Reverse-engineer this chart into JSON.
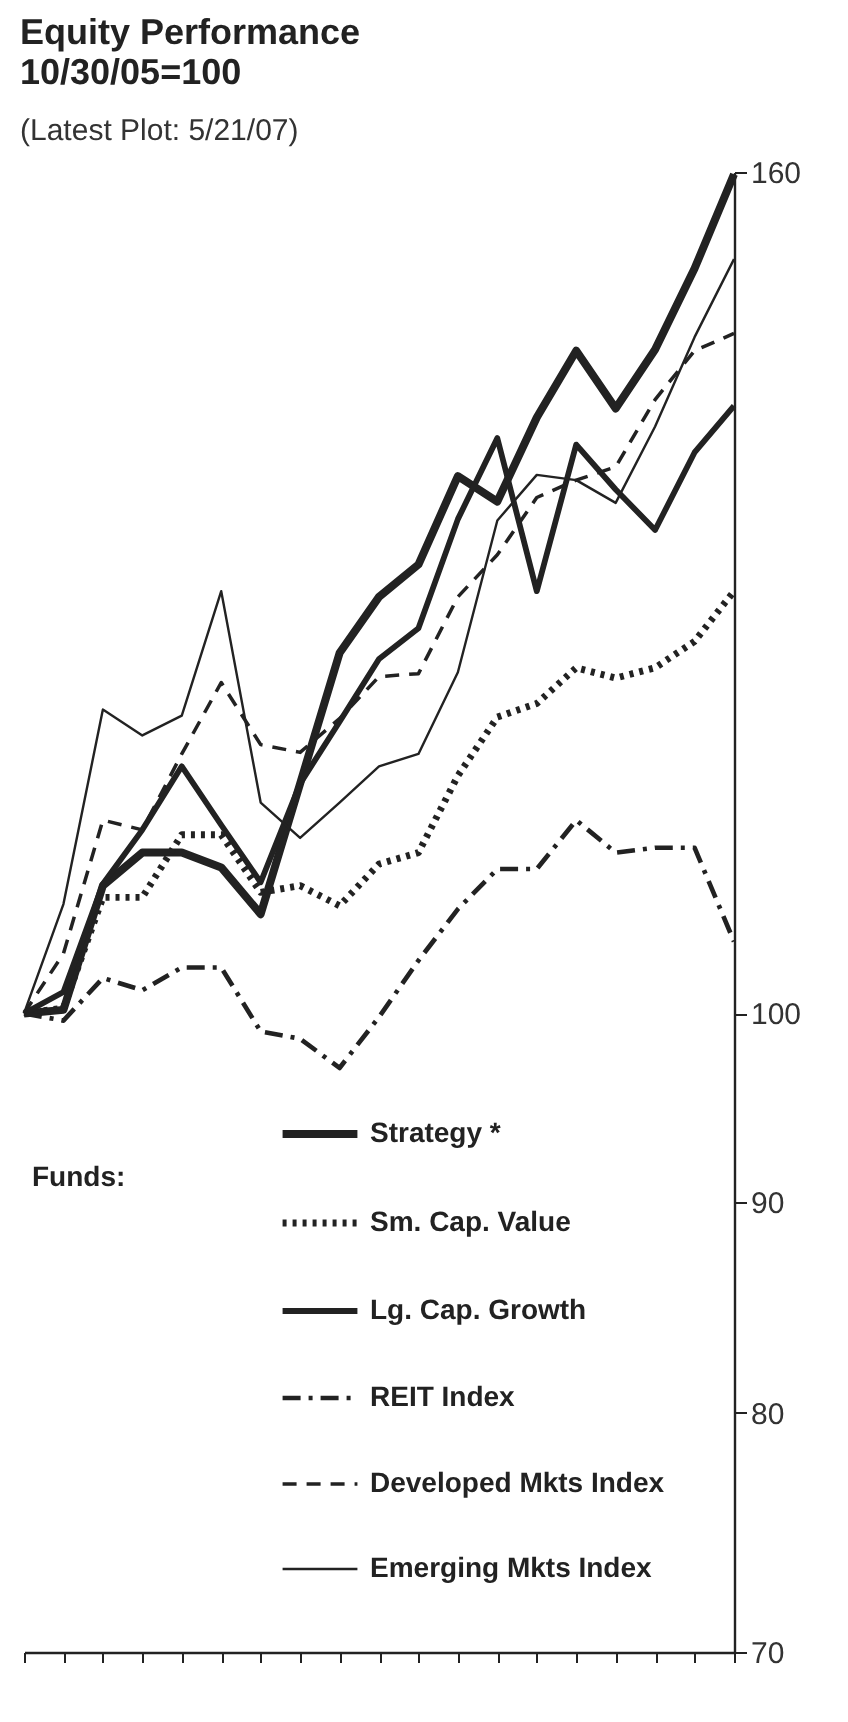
{
  "chart_data": {
    "type": "line",
    "title": [
      "Equity Performance",
      "10/30/05=100"
    ],
    "subtitle": "(Latest Plot: 5/21/07)",
    "categories": [
      null,
      null,
      null,
      null,
      null,
      null,
      null,
      null,
      null,
      null,
      null,
      null,
      null,
      null,
      null,
      null,
      null,
      null,
      null
    ],
    "series": [
      {
        "name": "Strategy *",
        "color": "#222222",
        "line_style": "solid",
        "values": [
          100,
          100.2,
          107.4,
          109.4,
          109.4,
          108.5,
          105.7,
          113.7,
          122.3,
          126.2,
          128.5,
          135.0,
          133.1,
          139.5,
          144.8,
          140.2,
          144.9,
          151.6,
          159.8
        ]
      },
      {
        "name": "Sm. Cap. Value",
        "color": "#222222",
        "line_style": "dotted",
        "values": [
          100,
          100.3,
          106.7,
          106.7,
          110.5,
          110.5,
          107.0,
          107.4,
          106.2,
          108.7,
          109.4,
          114.2,
          118.0,
          118.9,
          121.3,
          120.6,
          121.3,
          123.1,
          126.6
        ]
      },
      {
        "name": "Lg. Cap. Growth",
        "color": "#222222",
        "line_style": "solid",
        "values": [
          100,
          101.2,
          107.5,
          110.8,
          114.8,
          111.1,
          107.6,
          113.7,
          117.7,
          121.9,
          124.0,
          131.8,
          137.9,
          126.6,
          137.4,
          134.0,
          131.0,
          136.8,
          140.4
        ]
      },
      {
        "name": "REIT Index",
        "color": "#222222",
        "line_style": "dashdot",
        "values": [
          100,
          99.6,
          102.0,
          101.3,
          102.6,
          102.6,
          99.0,
          98.6,
          97.0,
          99.8,
          103.0,
          106.0,
          108.4,
          108.4,
          111.4,
          109.4,
          109.7,
          109.7,
          104.1
        ]
      },
      {
        "name": "Developed Mkts Index",
        "color": "#222222",
        "line_style": "dashed",
        "values": [
          100,
          103.4,
          111.4,
          110.8,
          115.6,
          120.3,
          116.2,
          115.7,
          117.9,
          120.7,
          120.9,
          126.2,
          129.2,
          133.4,
          134.7,
          135.7,
          140.9,
          144.8,
          146.2
        ]
      },
      {
        "name": "Emerging Mkts Index",
        "color": "#222222",
        "line_style": "solid",
        "values": [
          100,
          106.3,
          118.5,
          116.8,
          118.1,
          126.6,
          112.5,
          110.3,
          112.5,
          114.8,
          115.6,
          121.0,
          131.7,
          135.1,
          134.7,
          133.0,
          138.8,
          145.9,
          152.4
        ]
      }
    ],
    "annotations": [
      "Funds:"
    ],
    "log": "y",
    "ylim": [
      70,
      160
    ],
    "yticks": [
      70,
      80,
      90,
      100,
      160
    ],
    "tick_labels": "y",
    "grid": false,
    "legend": "bottom right"
  }
}
